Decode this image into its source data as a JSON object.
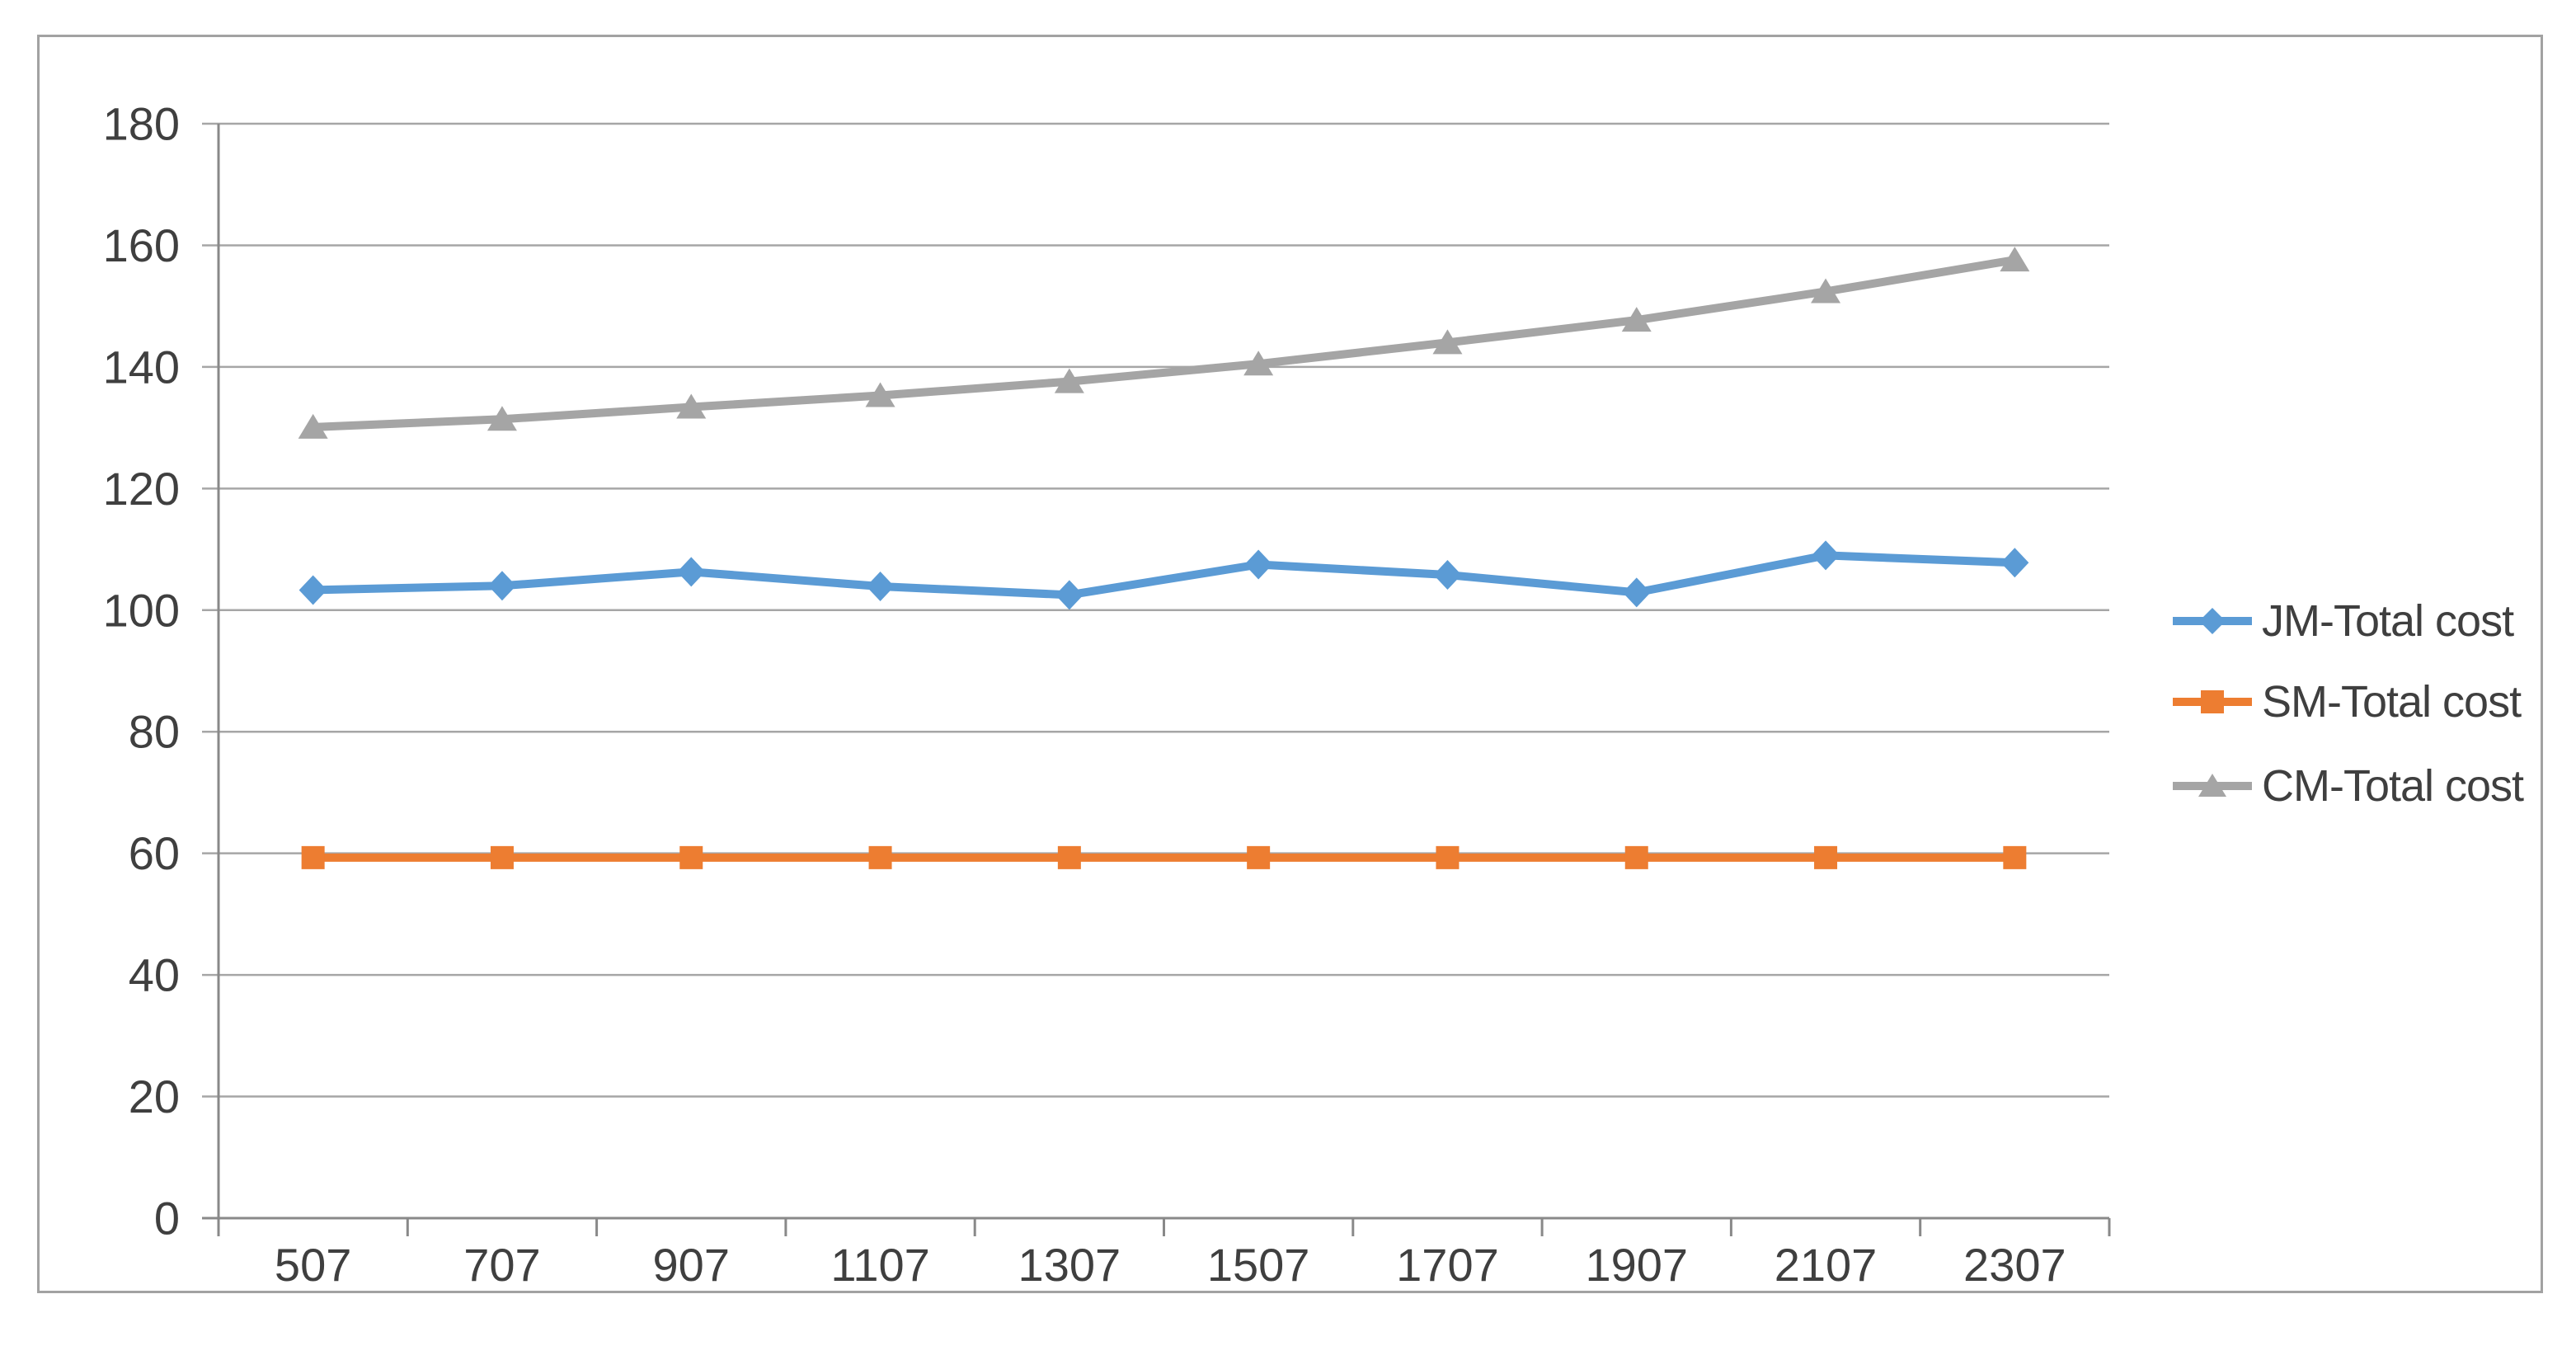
{
  "chart_data": {
    "type": "line",
    "title": "",
    "xlabel": "",
    "ylabel": "",
    "categories": [
      "507",
      "707",
      "907",
      "1107",
      "1307",
      "1507",
      "1707",
      "1907",
      "2107",
      "2307"
    ],
    "y_axis": {
      "min": 0,
      "max": 180,
      "step": 20,
      "tick_labels_top_to_bottom": [
        "180",
        "160",
        "140",
        "120",
        "100",
        "80",
        "60",
        "40",
        "20",
        "0"
      ]
    },
    "grid": true,
    "legend_position": "right",
    "series": [
      {
        "name": "JM-Total cost",
        "color": "#5B9BD5",
        "marker": "diamond",
        "values": [
          103.3,
          104.0,
          106.3,
          103.9,
          102.5,
          107.5,
          105.8,
          102.9,
          109.0,
          107.8
        ]
      },
      {
        "name": "SM-Total cost",
        "color": "#ED7D31",
        "marker": "square",
        "values": [
          59.3,
          59.3,
          59.3,
          59.3,
          59.3,
          59.3,
          59.3,
          59.3,
          59.3,
          59.3
        ]
      },
      {
        "name": "CM-Total cost",
        "color": "#A5A5A5",
        "marker": "triangle",
        "values": [
          130.1,
          131.4,
          133.4,
          135.3,
          137.6,
          140.5,
          144.0,
          147.7,
          152.4,
          157.6
        ]
      }
    ]
  },
  "colors": {
    "background": "#FFFFFF",
    "frame_border": "#A2A2A2",
    "gridline": "#A6A6A6",
    "axis_line": "#898989",
    "axis_text": "#3F3F3F"
  }
}
